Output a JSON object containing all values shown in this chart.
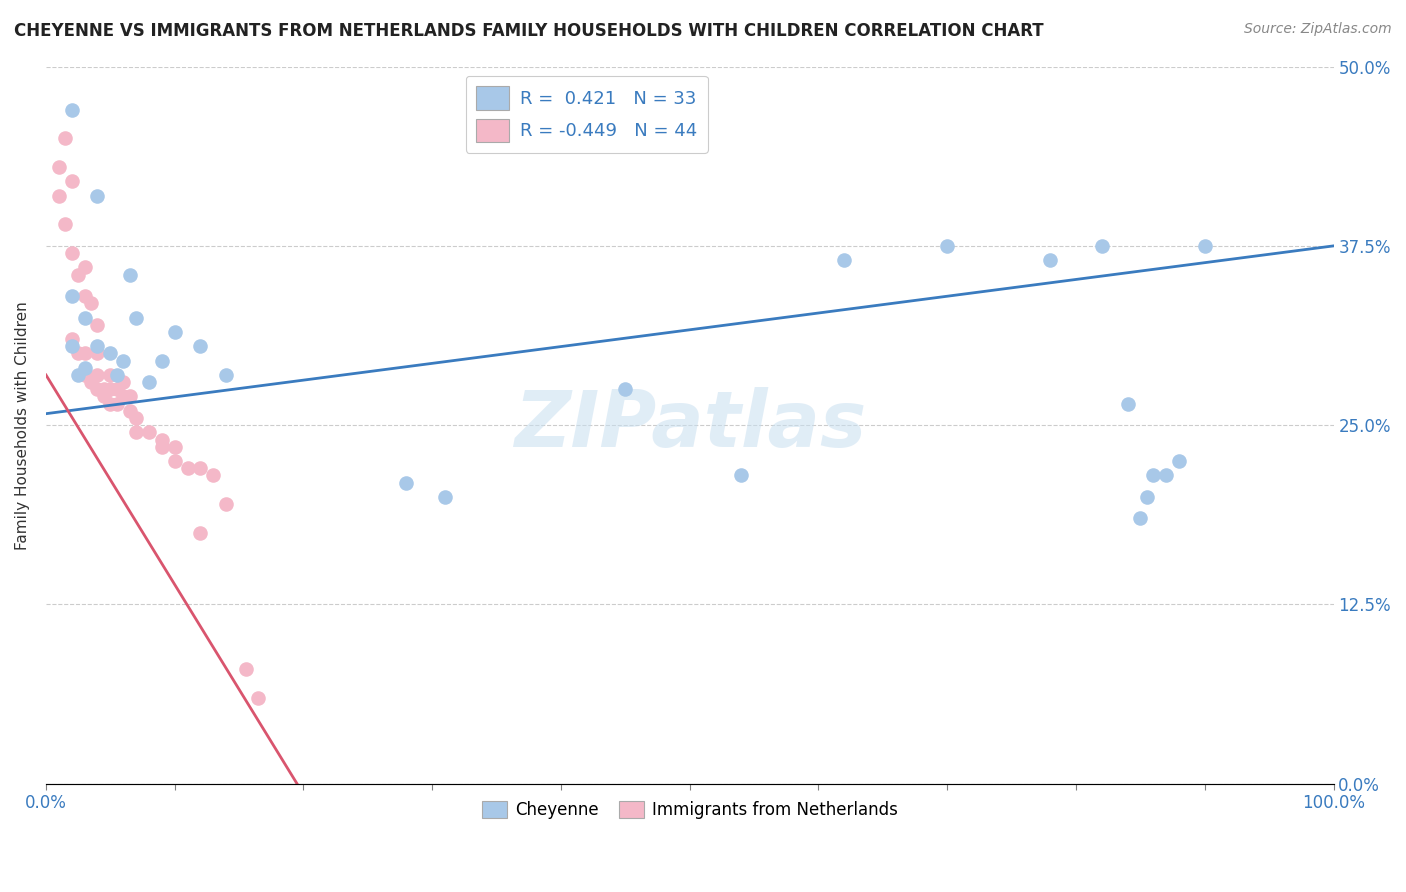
{
  "title": "CHEYENNE VS IMMIGRANTS FROM NETHERLANDS FAMILY HOUSEHOLDS WITH CHILDREN CORRELATION CHART",
  "source": "Source: ZipAtlas.com",
  "ylabel": "Family Households with Children",
  "xlim": [
    0.0,
    1.0
  ],
  "ylim": [
    0.0,
    0.5
  ],
  "yticks": [
    0.0,
    0.125,
    0.25,
    0.375,
    0.5
  ],
  "ytick_labels_right": [
    "0.0%",
    "12.5%",
    "25.0%",
    "37.5%",
    "50.0%"
  ],
  "xticks": [
    0.0,
    0.1,
    0.2,
    0.3,
    0.4,
    0.5,
    0.6,
    0.7,
    0.8,
    0.9,
    1.0
  ],
  "xtick_labels": [
    "0.0%",
    "",
    "",
    "",
    "",
    "",
    "",
    "",
    "",
    "",
    "100.0%"
  ],
  "blue_color": "#a8c8e8",
  "pink_color": "#f4b8c8",
  "blue_line_color": "#3a7bbf",
  "pink_line_color": "#d9556e",
  "watermark_text": "ZIPatlas",
  "legend_label1": "Cheyenne",
  "legend_label2": "Immigrants from Netherlands",
  "blue_scatter_x": [
    0.02,
    0.04,
    0.02,
    0.03,
    0.02,
    0.025,
    0.03,
    0.04,
    0.05,
    0.055,
    0.06,
    0.065,
    0.07,
    0.08,
    0.09,
    0.1,
    0.12,
    0.14,
    0.28,
    0.31,
    0.45,
    0.54,
    0.62,
    0.7,
    0.78,
    0.82,
    0.84,
    0.86,
    0.85,
    0.855,
    0.87,
    0.88,
    0.9
  ],
  "blue_scatter_y": [
    0.47,
    0.41,
    0.34,
    0.325,
    0.305,
    0.285,
    0.29,
    0.305,
    0.3,
    0.285,
    0.295,
    0.355,
    0.325,
    0.28,
    0.295,
    0.315,
    0.305,
    0.285,
    0.21,
    0.2,
    0.275,
    0.215,
    0.365,
    0.375,
    0.365,
    0.375,
    0.265,
    0.215,
    0.185,
    0.2,
    0.215,
    0.225,
    0.375
  ],
  "pink_scatter_x": [
    0.01,
    0.01,
    0.015,
    0.015,
    0.02,
    0.02,
    0.02,
    0.025,
    0.025,
    0.03,
    0.03,
    0.03,
    0.03,
    0.035,
    0.035,
    0.04,
    0.04,
    0.04,
    0.04,
    0.045,
    0.045,
    0.05,
    0.05,
    0.05,
    0.055,
    0.055,
    0.06,
    0.06,
    0.065,
    0.065,
    0.07,
    0.07,
    0.08,
    0.09,
    0.09,
    0.1,
    0.1,
    0.11,
    0.12,
    0.13,
    0.14,
    0.155,
    0.165,
    0.12
  ],
  "pink_scatter_y": [
    0.43,
    0.41,
    0.45,
    0.39,
    0.42,
    0.37,
    0.31,
    0.355,
    0.3,
    0.36,
    0.34,
    0.3,
    0.285,
    0.335,
    0.28,
    0.32,
    0.3,
    0.285,
    0.275,
    0.275,
    0.27,
    0.285,
    0.275,
    0.265,
    0.275,
    0.265,
    0.28,
    0.27,
    0.27,
    0.26,
    0.255,
    0.245,
    0.245,
    0.24,
    0.235,
    0.235,
    0.225,
    0.22,
    0.22,
    0.215,
    0.195,
    0.08,
    0.06,
    0.175
  ],
  "blue_line_x": [
    0.0,
    1.0
  ],
  "blue_line_y": [
    0.258,
    0.375
  ],
  "pink_line_x": [
    0.0,
    0.195
  ],
  "pink_line_y": [
    0.285,
    0.0
  ],
  "figsize": [
    14.06,
    8.92
  ],
  "dpi": 100,
  "title_color": "#222222",
  "source_color": "#888888",
  "tick_color": "#3a7bbf",
  "ylabel_color": "#333333"
}
